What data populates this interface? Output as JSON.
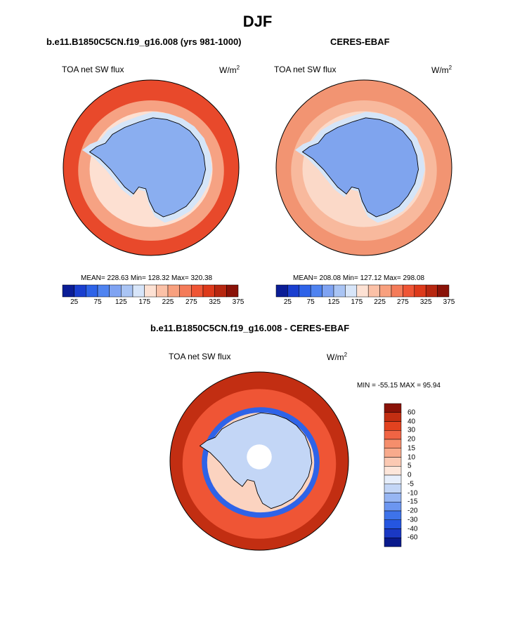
{
  "title": "DJF",
  "panels": [
    {
      "title": "b.e11.B1850C5CN.f19_g16.008 (yrs 981-1000)",
      "variable": "TOA net SW flux",
      "units_base": "W/m",
      "units_exp": "2",
      "stats": "MEAN= 228.63  Min= 128.32  Max= 320.38",
      "colors": {
        "outer": "#e8492b",
        "ring2": "#f6a283",
        "ring3": "#fde0d2",
        "ice": "#d5e5f8",
        "land": "#8aaef0"
      }
    },
    {
      "title": "CERES-EBAF",
      "variable": "TOA net SW flux",
      "units_base": "W/m",
      "units_exp": "2",
      "stats": "MEAN= 208.08  Min= 127.12  Max= 298.08",
      "colors": {
        "outer": "#f29472",
        "ring2": "#f8b99d",
        "ring3": "#fbd9c8",
        "ice": "#d5e5f8",
        "land": "#7fa4ee"
      }
    }
  ],
  "colorbar_abs": {
    "colors": [
      "#0b1d96",
      "#1a3fcf",
      "#2e63e8",
      "#4f83f0",
      "#7fa3f2",
      "#a9c4f4",
      "#d7e5f9",
      "#fde1d3",
      "#fbc1a7",
      "#f8a07e",
      "#f47b59",
      "#ef5535",
      "#dd3a1b",
      "#b72710",
      "#8a1208"
    ],
    "labels": [
      "25",
      "75",
      "125",
      "175",
      "225",
      "275",
      "325",
      "375"
    ]
  },
  "diff_panel": {
    "title": "b.e11.B1850C5CN.f19_g16.008 - CERES-EBAF",
    "variable": "TOA net SW flux",
    "units_base": "W/m",
    "units_exp": "2",
    "stats": "MIN = -55.15 MAX =  95.94",
    "colors": {
      "outer": "#c22e12",
      "mid": "#ef5535",
      "ring": "#fbd3c0",
      "white": "#ffffff",
      "blue": "#2e63e8",
      "pale": "#c3d6f6"
    }
  },
  "colorbar_diff": {
    "colors": [
      "#0a1a8c",
      "#1a38c4",
      "#2556e0",
      "#3e73ea",
      "#6c96f0",
      "#97b6f3",
      "#c3d6f6",
      "#e6eefb",
      "#fde6da",
      "#fbc9b3",
      "#f8aa8c",
      "#f58e6c",
      "#f06444",
      "#e2421f",
      "#c22e12",
      "#8a1208"
    ],
    "labels": [
      "60",
      "40",
      "30",
      "20",
      "15",
      "10",
      "5",
      "0",
      "-5",
      "-10",
      "-15",
      "-20",
      "-30",
      "-40",
      "-60"
    ]
  }
}
